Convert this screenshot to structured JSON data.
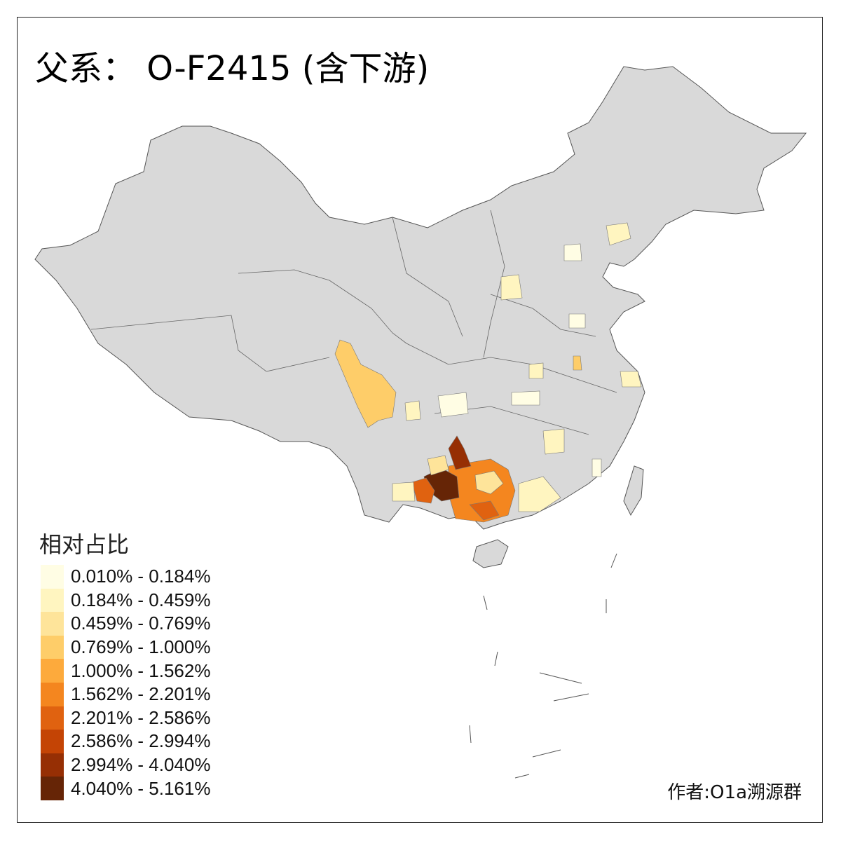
{
  "title": "父系： O-F2415 (含下游)",
  "legend": {
    "title": "相对占比",
    "items": [
      {
        "label": "0.010% - 0.184%",
        "color": "#FFFDE4"
      },
      {
        "label": "0.184% - 0.459%",
        "color": "#FFF5C0"
      },
      {
        "label": "0.459% - 0.769%",
        "color": "#FEE49A"
      },
      {
        "label": "0.769% - 1.000%",
        "color": "#FECD69"
      },
      {
        "label": "1.000% - 1.562%",
        "color": "#FDAA3C"
      },
      {
        "label": "1.562% - 2.201%",
        "color": "#F4861F"
      },
      {
        "label": "2.201% - 2.586%",
        "color": "#E06210"
      },
      {
        "label": "2.586% - 2.994%",
        "color": "#C44405"
      },
      {
        "label": "2.994% - 4.040%",
        "color": "#962F04"
      },
      {
        "label": "4.040% - 5.161%",
        "color": "#662506"
      }
    ]
  },
  "credit": "作者:O1a溯源群",
  "colors": {
    "no_data": "#D9D9D9",
    "border": "#555555"
  }
}
